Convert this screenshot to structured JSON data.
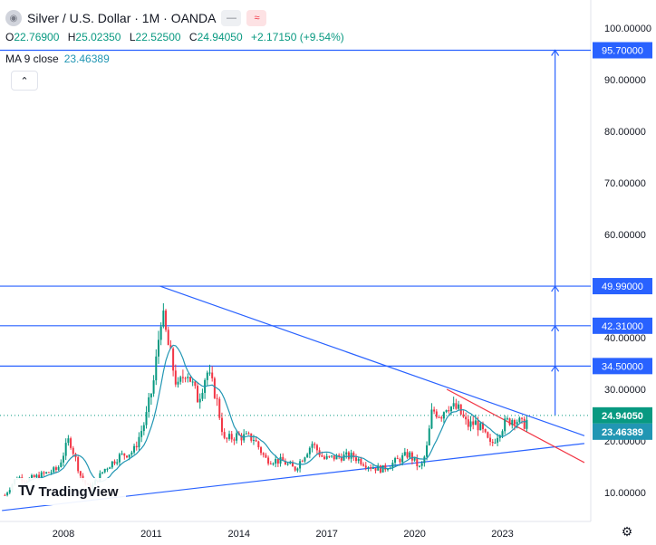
{
  "header": {
    "title": "Silver / U.S. Dollar · 1M · OANDA",
    "icon": "silver-coin-icon",
    "chip1": "—",
    "chip2": "≈"
  },
  "ohlc": {
    "o_label": "O",
    "o": "22.76900",
    "h_label": "H",
    "h": "25.02350",
    "l_label": "L",
    "l": "22.52500",
    "c_label": "C",
    "c": "24.94050",
    "change": "+2.17150 (+9.54%)"
  },
  "ma": {
    "label": "MA 9 close",
    "value": "23.46389"
  },
  "collapse_icon": "chevron-up-icon",
  "logo": {
    "mark": "TV",
    "text": "TradingView"
  },
  "settings_icon": "gear-icon",
  "colors": {
    "up": "#089981",
    "down": "#f23645",
    "level": "#2962ff",
    "ma": "#2196b3",
    "last_price_bg": "#089981",
    "ma_bg": "#2196b3",
    "red_line": "#f23645"
  },
  "chart_data": {
    "type": "candlestick",
    "x_ticks": [
      "2008",
      "2011",
      "2014",
      "2017",
      "2020",
      "2023"
    ],
    "y_ticks": [
      "100.00000",
      "90.00000",
      "80.00000",
      "70.00000",
      "60.00000",
      "40.00000",
      "30.00000",
      "20.00000",
      "10.00000"
    ],
    "y_range": [
      6.0,
      104.0
    ],
    "x_range": [
      2005.9,
      2025.8
    ],
    "horizontal_levels": [
      {
        "label": "95.70000",
        "value": 95.7
      },
      {
        "label": "49.99000",
        "value": 49.99
      },
      {
        "label": "42.31000",
        "value": 42.31
      },
      {
        "label": "34.50000",
        "value": 34.5
      }
    ],
    "last_price": {
      "label": "24.94050",
      "value": 24.9405
    },
    "ma_last": {
      "label": "23.46389",
      "value": 23.46389
    },
    "trendlines": [
      {
        "name": "upper-trendline",
        "from": [
          2011.3,
          49.99
        ],
        "to": [
          2025.8,
          21.0
        ],
        "color": "#2962ff"
      },
      {
        "name": "lower-trendline",
        "from": [
          2005.9,
          6.5
        ],
        "to": [
          2025.8,
          19.5
        ],
        "color": "#2962ff"
      },
      {
        "name": "red-trendline",
        "from": [
          2021.1,
          30.0
        ],
        "to": [
          2025.8,
          15.8
        ],
        "color": "#f23645"
      }
    ],
    "projection": {
      "x": 2024.8,
      "from": 24.94,
      "to": 95.7
    },
    "price_path": [
      [
        2006.0,
        9.5
      ],
      [
        2006.4,
        13.0
      ],
      [
        2006.8,
        12.5
      ],
      [
        2007.3,
        13.5
      ],
      [
        2007.8,
        14.5
      ],
      [
        2008.2,
        20.5
      ],
      [
        2008.6,
        13.0
      ],
      [
        2008.9,
        10.5
      ],
      [
        2009.4,
        14.5
      ],
      [
        2009.9,
        17.0
      ],
      [
        2010.4,
        18.0
      ],
      [
        2010.8,
        24.0
      ],
      [
        2011.1,
        32.0
      ],
      [
        2011.35,
        45.0
      ],
      [
        2011.6,
        38.0
      ],
      [
        2011.9,
        30.0
      ],
      [
        2012.2,
        34.0
      ],
      [
        2012.6,
        28.0
      ],
      [
        2012.9,
        33.5
      ],
      [
        2013.2,
        29.0
      ],
      [
        2013.5,
        20.0
      ],
      [
        2013.9,
        21.0
      ],
      [
        2014.5,
        20.5
      ],
      [
        2014.9,
        16.5
      ],
      [
        2015.5,
        16.0
      ],
      [
        2015.9,
        14.5
      ],
      [
        2016.5,
        19.5
      ],
      [
        2016.9,
        16.5
      ],
      [
        2017.5,
        17.0
      ],
      [
        2017.9,
        17.0
      ],
      [
        2018.5,
        15.0
      ],
      [
        2018.9,
        14.5
      ],
      [
        2019.5,
        16.5
      ],
      [
        2019.8,
        17.5
      ],
      [
        2020.2,
        14.5
      ],
      [
        2020.4,
        18.0
      ],
      [
        2020.6,
        26.0
      ],
      [
        2020.9,
        25.0
      ],
      [
        2021.1,
        27.0
      ],
      [
        2021.5,
        26.0
      ],
      [
        2021.8,
        23.0
      ],
      [
        2022.1,
        23.5
      ],
      [
        2022.3,
        22.0
      ],
      [
        2022.6,
        19.0
      ],
      [
        2022.9,
        22.0
      ],
      [
        2023.1,
        23.5
      ],
      [
        2023.4,
        24.5
      ],
      [
        2023.7,
        23.0
      ],
      [
        2023.9,
        24.3
      ]
    ]
  }
}
